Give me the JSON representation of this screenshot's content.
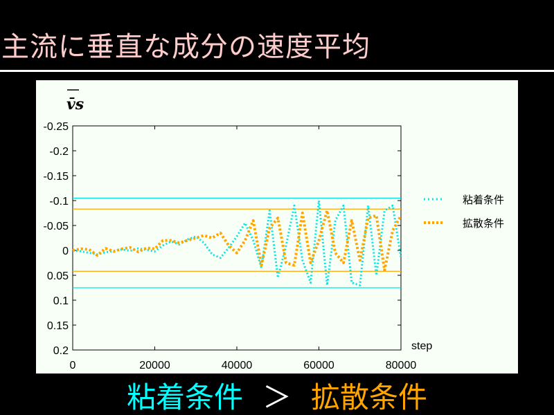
{
  "slide": {
    "title": "主流に垂直な成分の速度平均"
  },
  "footer": {
    "left": "粘着条件",
    "op": "＞",
    "right": "拡散条件"
  },
  "colors": {
    "background": "#000000",
    "title": "#ffcccc",
    "panel": "#f7fff7",
    "viscous": "#00e5e5",
    "diffuse": "#ffa500",
    "footer_viscous": "#00ffff",
    "footer_diffuse": "#ffa500"
  },
  "chart_data": {
    "type": "line",
    "ylabel": "v̄s",
    "xlabel": "step",
    "xlim": [
      0,
      80000
    ],
    "ylim": [
      -0.25,
      0.2
    ],
    "y_inverted": true,
    "x_ticks": [
      0,
      20000,
      40000,
      60000,
      80000
    ],
    "y_ticks": [
      -0.25,
      -0.2,
      -0.15,
      -0.1,
      -0.05,
      0,
      0.05,
      0.1,
      0.15,
      0.2
    ],
    "y_tick_labels": [
      "-0.25",
      "-0.2",
      "-0.15",
      "-0.1",
      "-0.05",
      "0",
      "0.05",
      "0.1",
      "0.15",
      "0.2"
    ],
    "grid": false,
    "legend_position": "right",
    "series": [
      {
        "name": "粘着条件",
        "color": "#00e5e5",
        "style": "dotted",
        "x": [
          0,
          2000,
          4000,
          6000,
          8000,
          10000,
          12000,
          14000,
          16000,
          18000,
          20000,
          22000,
          24000,
          26000,
          28000,
          30000,
          32000,
          34000,
          36000,
          38000,
          40000,
          42000,
          44000,
          46000,
          48000,
          50000,
          52000,
          54000,
          56000,
          58000,
          60000,
          62000,
          64000,
          66000,
          68000,
          70000,
          72000,
          74000,
          76000,
          78000,
          80000
        ],
        "values": [
          0,
          0.002,
          0.005,
          0.008,
          0.004,
          0.001,
          -0.002,
          0.001,
          -0.004,
          -0.001,
          0.002,
          -0.01,
          -0.018,
          -0.012,
          -0.022,
          -0.028,
          -0.015,
          0.008,
          0.015,
          -0.005,
          -0.028,
          -0.055,
          -0.02,
          0.035,
          -0.08,
          0.055,
          -0.01,
          -0.09,
          0.02,
          0.065,
          -0.1,
          0.07,
          -0.06,
          -0.09,
          0.065,
          0.07,
          -0.09,
          0.05,
          -0.08,
          -0.09,
          0.015
        ]
      },
      {
        "name": "拡散条件",
        "color": "#ffa500",
        "style": "dotted",
        "x": [
          0,
          2000,
          4000,
          6000,
          8000,
          10000,
          12000,
          14000,
          16000,
          18000,
          20000,
          22000,
          24000,
          26000,
          28000,
          30000,
          32000,
          34000,
          36000,
          38000,
          40000,
          42000,
          44000,
          46000,
          48000,
          50000,
          52000,
          54000,
          56000,
          58000,
          60000,
          62000,
          64000,
          66000,
          68000,
          70000,
          72000,
          74000,
          76000,
          78000,
          80000
        ],
        "values": [
          0,
          -0.003,
          -0.002,
          0.01,
          -0.004,
          0.002,
          -0.003,
          -0.006,
          0.003,
          -0.005,
          -0.003,
          -0.02,
          -0.02,
          -0.015,
          -0.02,
          -0.025,
          -0.03,
          -0.025,
          -0.035,
          -0.01,
          0.005,
          -0.02,
          -0.06,
          0.03,
          -0.045,
          -0.065,
          0.025,
          0.03,
          -0.075,
          0.025,
          -0.02,
          -0.08,
          0.005,
          0.025,
          -0.06,
          0.02,
          -0.065,
          -0.07,
          0.04,
          -0.04,
          -0.07
        ]
      }
    ],
    "reference_lines": [
      {
        "series": "粘着条件",
        "values": [
          -0.105,
          0.075
        ]
      },
      {
        "series": "拡散条件",
        "values": [
          -0.083,
          0.042
        ]
      }
    ]
  }
}
